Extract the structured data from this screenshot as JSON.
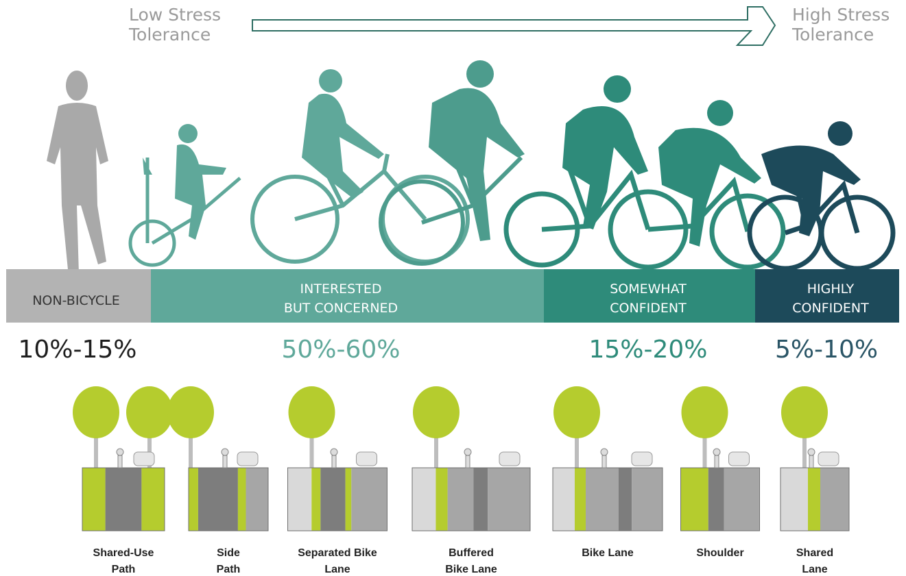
{
  "header": {
    "low": [
      "Low Stress",
      "Tolerance"
    ],
    "high": [
      "High Stress",
      "Tolerance"
    ]
  },
  "groups": [
    {
      "label": [
        "NON-BICYCLE"
      ],
      "share": "10%-15%"
    },
    {
      "label": [
        "INTERESTED",
        "BUT CONCERNED"
      ],
      "share": "50%-60%"
    },
    {
      "label": [
        "SOMEWHAT",
        "CONFIDENT"
      ],
      "share": "15%-20%"
    },
    {
      "label": [
        "HIGHLY",
        "CONFIDENT"
      ],
      "share": "5%-10%"
    }
  ],
  "facilities": [
    {
      "name": [
        "Shared-Use",
        "Path"
      ]
    },
    {
      "name": [
        "Side",
        "Path"
      ]
    },
    {
      "name": [
        "Separated Bike",
        "Lane"
      ]
    },
    {
      "name": [
        "Buffered",
        "Bike Lane"
      ]
    },
    {
      "name": [
        "Bike Lane"
      ]
    },
    {
      "name": [
        "Shoulder"
      ]
    },
    {
      "name": [
        "Shared",
        "Lane"
      ]
    }
  ]
}
